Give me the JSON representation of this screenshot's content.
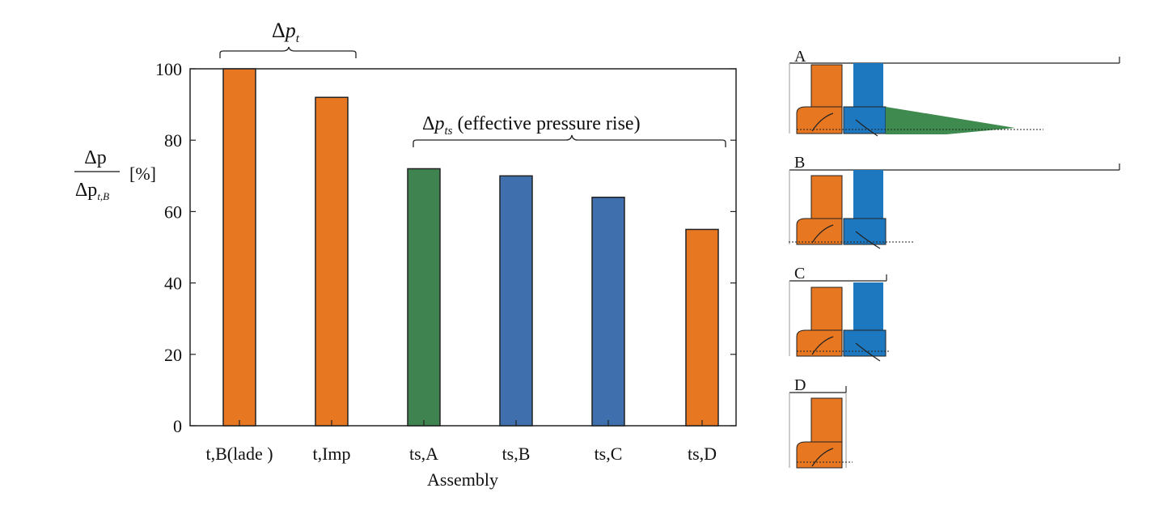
{
  "chart_data": {
    "type": "bar",
    "categories": [
      "t,B(lade )",
      "t,Imp",
      "ts,A",
      "ts,B",
      "ts,C",
      "ts,D"
    ],
    "values": [
      100,
      92,
      72,
      70,
      64,
      55
    ],
    "bar_colors": [
      "#e87722",
      "#e87722",
      "#3f8450",
      "#3f70ad",
      "#3f70ad",
      "#e87722"
    ],
    "xlabel": "Assembly",
    "ylabel_num": "Δp",
    "ylabel_den": "Δp",
    "ylabel_den_sub": "t,B",
    "ylabel_unit": "[%]",
    "ylim": [
      0,
      100
    ],
    "yticks": [
      0,
      20,
      40,
      60,
      80,
      100
    ],
    "grid": false,
    "annotations": {
      "left": {
        "delta": "Δ",
        "p": "p",
        "sub": "t"
      },
      "right": {
        "delta": "Δ",
        "p": "p",
        "sub": "ts",
        "text": " (effective pressure rise)"
      }
    }
  },
  "schematics": {
    "labels": [
      "A",
      "B",
      "C",
      "D"
    ],
    "colors": {
      "blade": "#e87722",
      "rotor": "#1d78bf",
      "cone": "#3f8a4e"
    }
  }
}
